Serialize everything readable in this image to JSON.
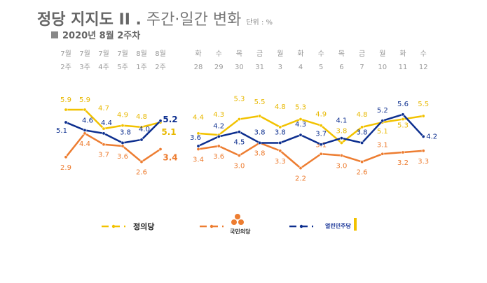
{
  "header": {
    "title_bold": "정당 지지도 II .",
    "title_light": "주간·일간 변화",
    "unit": "단위 : %",
    "subtitle": "2020년 8월 2주차"
  },
  "chart_data": [
    {
      "type": "line",
      "categories_top": [
        "7월",
        "7월",
        "7월",
        "7월",
        "8월",
        "8월"
      ],
      "categories": [
        "2주",
        "3주",
        "4주",
        "5주",
        "1주",
        "2주"
      ],
      "series": [
        {
          "name": "정의당",
          "color": "#f2c200",
          "values": [
            5.9,
            5.9,
            4.7,
            4.9,
            4.8,
            5.1
          ]
        },
        {
          "name": "국민의당",
          "color": "#ed7d31",
          "values": [
            2.9,
            4.4,
            3.7,
            3.6,
            2.6,
            3.4
          ]
        },
        {
          "name": "열린민주당",
          "color": "#0d2f8f",
          "values": [
            5.1,
            4.6,
            4.4,
            3.8,
            4.0,
            5.2
          ]
        }
      ]
    },
    {
      "type": "line",
      "categories_top": [
        "화",
        "수",
        "목",
        "금",
        "월",
        "화",
        "수",
        "목",
        "금",
        "월",
        "화",
        "수"
      ],
      "categories": [
        "28",
        "29",
        "30",
        "31",
        "3",
        "4",
        "5",
        "6",
        "7",
        "10",
        "11",
        "12"
      ],
      "series": [
        {
          "name": "정의당",
          "color": "#f2c200",
          "values": [
            4.4,
            4.3,
            5.3,
            5.5,
            4.8,
            5.3,
            4.9,
            3.8,
            4.8,
            5.1,
            5.3,
            5.5
          ]
        },
        {
          "name": "국민의당",
          "color": "#ed7d31",
          "values": [
            3.4,
            3.6,
            3.0,
            3.8,
            3.3,
            2.2,
            3.1,
            3.0,
            2.6,
            3.1,
            3.2,
            3.3
          ]
        },
        {
          "name": "열린민주당",
          "color": "#0d2f8f",
          "values": [
            3.6,
            4.2,
            4.5,
            3.8,
            3.8,
            4.3,
            3.7,
            4.1,
            3.8,
            5.2,
            5.6,
            4.2
          ]
        }
      ]
    }
  ],
  "legend": [
    {
      "label": "정의당",
      "color": "#f2c200"
    },
    {
      "label": "국민의당",
      "color": "#ed7d31"
    },
    {
      "label": "열린민주당",
      "color": "#0d2f8f"
    }
  ]
}
